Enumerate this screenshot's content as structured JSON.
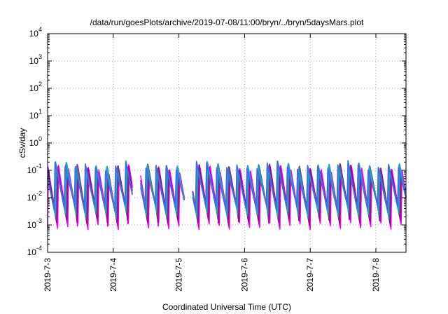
{
  "chart_data": {
    "type": "line",
    "title": "/data/run/goesPlots/archive/2019-07-08/11:00/bryn/../bryn/5daysMars.plot",
    "xlabel": "Coordinated Universal Time (UTC)",
    "ylabel": "cSv/day",
    "y_scale": "log",
    "ylim": [
      0.0001,
      10000
    ],
    "y_ticks": [
      {
        "value": 0.0001,
        "base": "10",
        "exp": "-4"
      },
      {
        "value": 0.001,
        "base": "10",
        "exp": "-3"
      },
      {
        "value": 0.01,
        "base": "10",
        "exp": "-2"
      },
      {
        "value": 0.1,
        "base": "10",
        "exp": "-1"
      },
      {
        "value": 1,
        "base": "10",
        "exp": "0"
      },
      {
        "value": 10,
        "base": "10",
        "exp": "1"
      },
      {
        "value": 100,
        "base": "10",
        "exp": "2"
      },
      {
        "value": 1000,
        "base": "10",
        "exp": "3"
      },
      {
        "value": 10000,
        "base": "10",
        "exp": "4"
      }
    ],
    "x_range": [
      "2019-07-03T00:00",
      "2019-07-08T11:00"
    ],
    "x_ticks": [
      "2019-7-3",
      "2019-7-4",
      "2019-7-5",
      "2019-7-6",
      "2019-7-7",
      "2019-7-8"
    ],
    "grid": true,
    "legend": "none",
    "series_style": {
      "colors": [
        "#ff00ff",
        "#cc00cc",
        "#990099",
        "#7b2a8a",
        "#2b8a8a",
        "#20b2aa",
        "#1e90ff",
        "#4169e1"
      ],
      "cycles_per_day": 6.5,
      "peak_envelope": [
        0.1,
        0.15
      ],
      "min_envelope": [
        0.0012,
        0.006
      ],
      "gaps": [
        {
          "start": "2019-07-04T07:00",
          "end": "2019-07-04T10:00"
        },
        {
          "start": "2019-07-05T02:00",
          "end": "2019-07-05T05:00"
        }
      ]
    }
  }
}
